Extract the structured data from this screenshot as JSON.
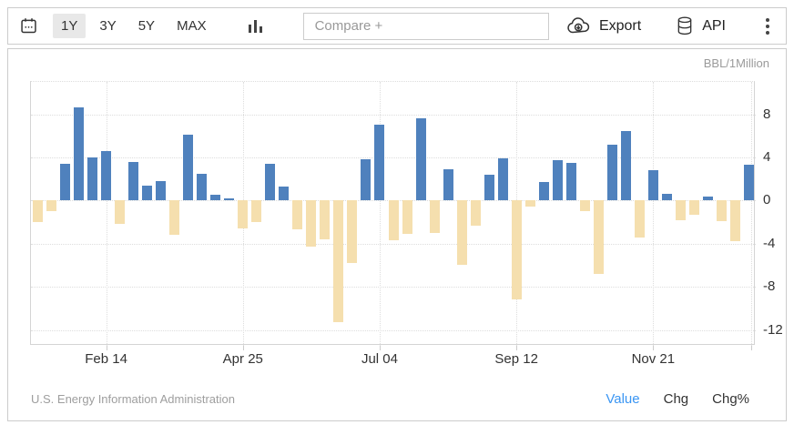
{
  "toolbar": {
    "range_buttons": [
      {
        "label": "1Y",
        "selected": true
      },
      {
        "label": "3Y",
        "selected": false
      },
      {
        "label": "5Y",
        "selected": false
      },
      {
        "label": "MAX",
        "selected": false
      }
    ],
    "compare_placeholder": "Compare +",
    "export_label": "Export",
    "api_label": "API",
    "icons": [
      "calendar-icon",
      "column-chart-icon",
      "cloud-download-icon",
      "database-icon",
      "kebab-menu-icon"
    ]
  },
  "chart": {
    "unit_label": "BBL/1Million",
    "source": "U.S. Energy Information Administration",
    "view_modes": [
      {
        "label": "Value",
        "active": true
      },
      {
        "label": "Chg",
        "active": false
      },
      {
        "label": "Chg%",
        "active": false
      }
    ],
    "active_mode_color": "#3b96f3"
  },
  "chart_data": {
    "type": "bar",
    "ylabel": "BBL/1Million",
    "values": [
      -2.0,
      -1.0,
      3.4,
      8.6,
      4.0,
      4.6,
      -2.2,
      3.6,
      1.4,
      1.8,
      -3.2,
      6.1,
      2.5,
      0.5,
      0.2,
      -2.6,
      -2.0,
      3.4,
      1.3,
      -2.7,
      -4.3,
      -3.6,
      -11.3,
      -5.8,
      3.8,
      7.0,
      -3.7,
      -3.1,
      7.6,
      -3.0,
      2.9,
      -6.0,
      -2.3,
      2.4,
      3.9,
      -9.2,
      -0.6,
      1.7,
      3.7,
      3.5,
      -1.0,
      -6.8,
      5.2,
      6.4,
      -3.4,
      2.8,
      0.6,
      -1.8,
      -1.3,
      0.4,
      -1.9,
      -3.8,
      3.3
    ],
    "x_ticks": [
      {
        "index": 5,
        "label": "Feb 14"
      },
      {
        "index": 15,
        "label": "Apr 25"
      },
      {
        "index": 25,
        "label": "Jul 04"
      },
      {
        "index": 35,
        "label": "Sep 12"
      },
      {
        "index": 45,
        "label": "Nov 21"
      },
      {
        "index": 52.2,
        "label": ""
      }
    ],
    "y_ticks": [
      8,
      4,
      0,
      -4,
      -8,
      -12
    ],
    "ylim": [
      -13.4,
      11.0
    ],
    "positive_color": "#4f81bd",
    "negative_color": "#f5dfae",
    "grid": true,
    "legend": false,
    "y_axis_position": "right"
  }
}
